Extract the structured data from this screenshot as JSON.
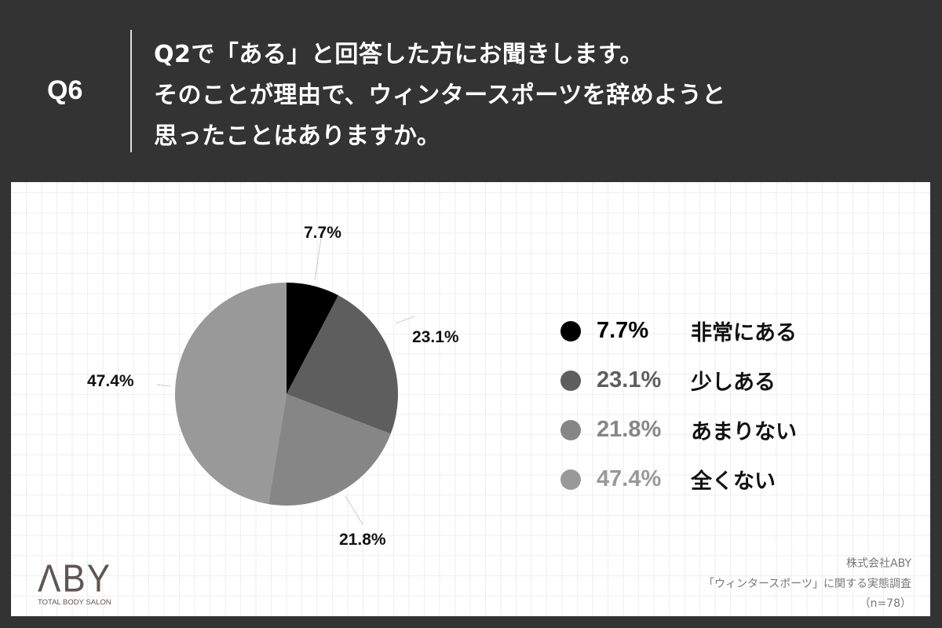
{
  "header": {
    "question_number": "Q6",
    "question_lines": [
      "Q2で「ある」と回答した方にお聞きします。",
      "そのことが理由で、ウィンタースポーツを辞めようと",
      "思ったことはありますか。"
    ]
  },
  "colors": {
    "background": "#333333",
    "panel": "#ffffff",
    "grid": "#eeeeee",
    "slice_1": "#000000",
    "slice_2": "#5e5e5e",
    "slice_3": "#868686",
    "slice_4": "#999999"
  },
  "pie_labels": [
    "7.7%",
    "23.1%",
    "21.8%",
    "47.4%"
  ],
  "legend": [
    {
      "percent": "7.7%",
      "label": "非常にある",
      "color": "#000000",
      "text_color": "#000000"
    },
    {
      "percent": "23.1%",
      "label": "少しある",
      "color": "#5e5e5e",
      "text_color": "#5e5e5e"
    },
    {
      "percent": "21.8%",
      "label": "あまりない",
      "color": "#868686",
      "text_color": "#868686"
    },
    {
      "percent": "47.4%",
      "label": "全くない",
      "color": "#999999",
      "text_color": "#999999"
    }
  ],
  "logo": {
    "mark": "ΛBY",
    "tagline": "TOTAL BODY SALON"
  },
  "source": {
    "company": "株式会社ABY",
    "survey": "「ウィンタースポーツ」に関する実態調査",
    "sample": "（n=78）"
  },
  "chart_data": {
    "type": "pie",
    "title": "Q6 Q2で「ある」と回答した方にお聞きします。そのことが理由で、ウィンタースポーツを辞めようと思ったことはありますか。",
    "categories": [
      "非常にある",
      "少しある",
      "あまりない",
      "全くない"
    ],
    "values": [
      7.7,
      23.1,
      21.8,
      47.4
    ],
    "unit": "%",
    "colors": [
      "#000000",
      "#5e5e5e",
      "#868686",
      "#999999"
    ],
    "start_angle": "12 o'clock, clockwise",
    "legend_position": "right",
    "sample_size": 78,
    "source": "株式会社ABY 「ウィンタースポーツ」に関する実態調査 (n=78)"
  }
}
